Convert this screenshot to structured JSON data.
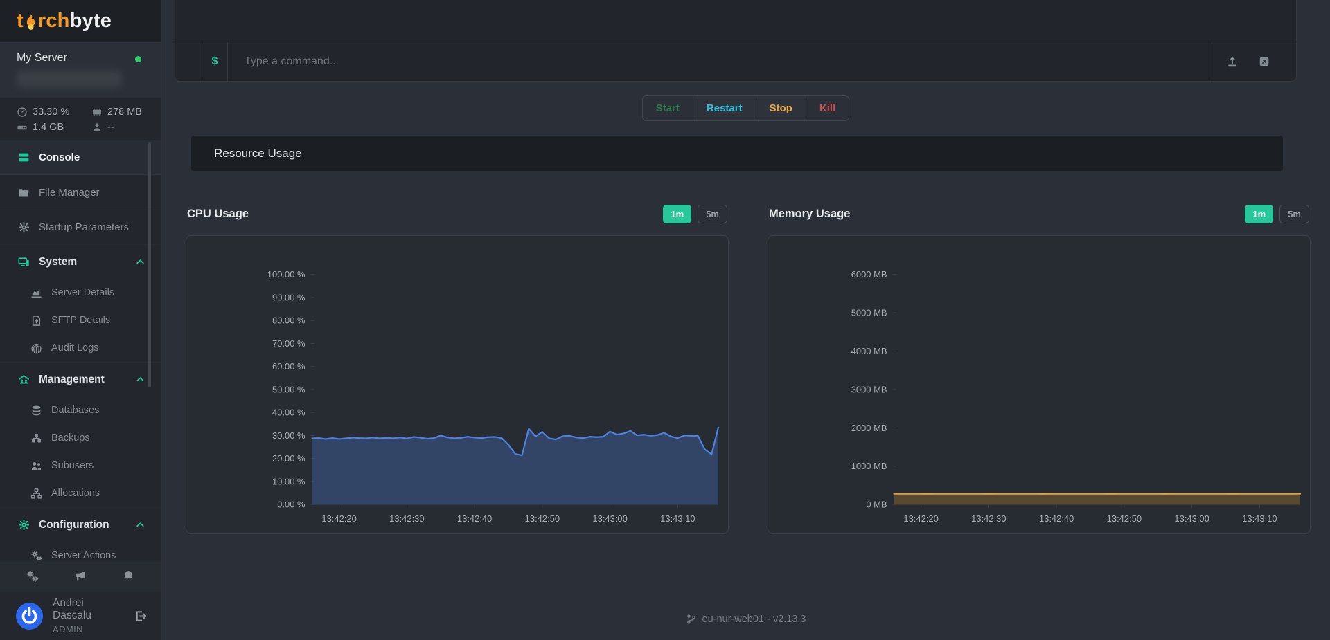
{
  "brand": {
    "t": "t",
    "rch": "rch",
    "byte": "byte"
  },
  "server": {
    "name": "My Server",
    "status": "online",
    "status_color": "#2ecc71",
    "stats": {
      "cpu": "33.30 %",
      "memory": "278 MB",
      "disk": "1.4 GB",
      "players": "--"
    }
  },
  "sidebar": {
    "items": [
      {
        "label": "Console",
        "active": true
      },
      {
        "label": "File Manager"
      },
      {
        "label": "Startup Parameters"
      },
      {
        "label": "System",
        "header": true,
        "expanded": true
      },
      {
        "label": "Server Details",
        "sub": true
      },
      {
        "label": "SFTP Details",
        "sub": true
      },
      {
        "label": "Audit Logs",
        "sub": true
      },
      {
        "label": "Management",
        "header": true,
        "expanded": true
      },
      {
        "label": "Databases",
        "sub": true
      },
      {
        "label": "Backups",
        "sub": true
      },
      {
        "label": "Subusers",
        "sub": true
      },
      {
        "label": "Allocations",
        "sub": true
      },
      {
        "label": "Configuration",
        "header": true,
        "expanded": true
      },
      {
        "label": "Server Actions",
        "sub": true
      }
    ]
  },
  "user": {
    "name": "Andrei Dascalu",
    "role": "ADMIN"
  },
  "console": {
    "prompt": "$",
    "placeholder": "Type a command..."
  },
  "power_buttons": {
    "start": "Start",
    "restart": "Restart",
    "stop": "Stop",
    "kill": "Kill"
  },
  "section_title": "Resource Usage",
  "footer": {
    "node": "eu-nur-web01 - v2.13.3"
  },
  "colors": {
    "accent": "#25c79b",
    "cpu_line": "#4d82e0",
    "mem_line": "#e5a33b",
    "status_online": "#2ecc71"
  },
  "chart_data": [
    {
      "type": "area",
      "title": "CPU Usage",
      "unit": "%",
      "range_buttons": [
        "1m",
        "5m"
      ],
      "active_range": "1m",
      "ylim": [
        0,
        100
      ],
      "ytick_labels": [
        "100.00 %",
        "90.00 %",
        "80.00 %",
        "70.00 %",
        "60.00 %",
        "50.00 %",
        "40.00 %",
        "30.00 %",
        "20.00 %",
        "10.00 %",
        "0.00 %"
      ],
      "x_tick_labels": [
        "13:42:20",
        "13:42:30",
        "13:42:40",
        "13:42:50",
        "13:43:00",
        "13:43:10"
      ],
      "x_tick_indices": [
        4,
        14,
        24,
        34,
        44,
        54
      ],
      "values": [
        28.8,
        28.9,
        28.5,
        28.9,
        28.5,
        28.8,
        29.1,
        28.9,
        28.8,
        29.1,
        28.8,
        29.0,
        28.8,
        29.2,
        28.7,
        29.4,
        29.1,
        28.6,
        28.9,
        30.0,
        29.2,
        28.8,
        29.0,
        29.5,
        29.1,
        28.9,
        29.3,
        29.4,
        28.9,
        26.0,
        22.0,
        21.4,
        33.0,
        29.6,
        31.6,
        28.8,
        28.3,
        29.7,
        29.9,
        29.2,
        28.9,
        29.5,
        29.3,
        29.5,
        31.7,
        30.4,
        30.9,
        32.0,
        30.1,
        30.4,
        29.9,
        30.2,
        31.2,
        29.6,
        28.9,
        30.0,
        29.9,
        29.8,
        24.0,
        21.8,
        33.6
      ],
      "line_color": "#4d82e0",
      "fill_color": "rgba(77,130,224,0.30)"
    },
    {
      "type": "area",
      "title": "Memory Usage",
      "unit": "MB",
      "range_buttons": [
        "1m",
        "5m"
      ],
      "active_range": "1m",
      "ylim": [
        0,
        6000
      ],
      "ytick_labels": [
        "6000 MB",
        "5000 MB",
        "4000 MB",
        "3000 MB",
        "2000 MB",
        "1000 MB",
        "0 MB"
      ],
      "x_tick_labels": [
        "13:42:20",
        "13:42:30",
        "13:42:40",
        "13:42:50",
        "13:43:00",
        "13:43:10"
      ],
      "x_tick_indices": [
        4,
        14,
        24,
        34,
        44,
        54
      ],
      "values": [
        281,
        280,
        280,
        281,
        280,
        279,
        280,
        281,
        280,
        280,
        280,
        281,
        280,
        280,
        279,
        280,
        281,
        280,
        280,
        280,
        281,
        280,
        279,
        280,
        280,
        281,
        280,
        280,
        280,
        281,
        280,
        280,
        279,
        280,
        281,
        280,
        280,
        280,
        281,
        280,
        279,
        280,
        280,
        281,
        280,
        280,
        280,
        281,
        280,
        280,
        279,
        280,
        281,
        280,
        280,
        280,
        281,
        280,
        280,
        281,
        282
      ],
      "line_color": "#e5a33b",
      "fill_color": "rgba(160,115,45,0.42)"
    }
  ]
}
